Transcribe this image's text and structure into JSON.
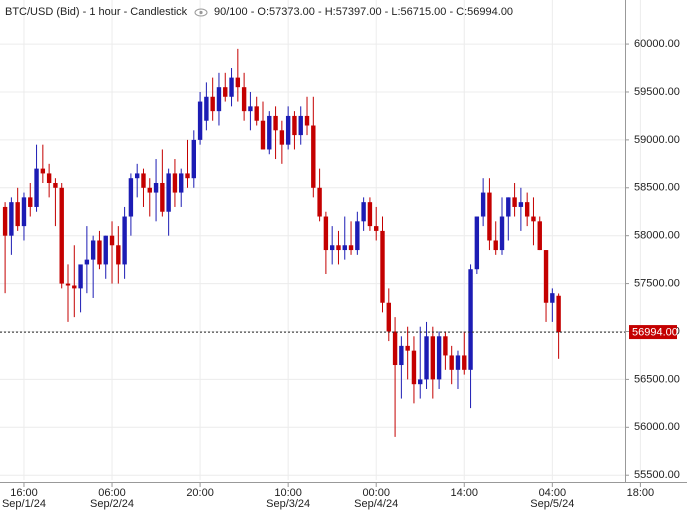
{
  "chart_data": {
    "type": "candlestick",
    "title": "BTC/USD (Bid) - 1 hour - Candlestick",
    "info": "90/100 - O:57373.00 - H:57397.00 - L:56715.00 - C:56994.00",
    "up_color": "#1c1cb4",
    "down_color": "#c40000",
    "ylim": [
      55450,
      60460
    ],
    "yticks": [
      {
        "value": 55500,
        "label": "55500.00"
      },
      {
        "value": 56000,
        "label": "56000.00"
      },
      {
        "value": 56500,
        "label": "56500.00"
      },
      {
        "value": 57000,
        "label": "57000.00"
      },
      {
        "value": 57500,
        "label": "57500.00"
      },
      {
        "value": 58000,
        "label": "58000.00"
      },
      {
        "value": 58500,
        "label": "58500.00"
      },
      {
        "value": 59000,
        "label": "59000.00"
      },
      {
        "value": 59500,
        "label": "59500.00"
      },
      {
        "value": 60000,
        "label": "60000.00"
      }
    ],
    "xticks": [
      {
        "value": "Sep/1/24 16:00",
        "label": "16:00"
      },
      {
        "value": "Sep/2/24 06:00",
        "label": "06:00"
      },
      {
        "value": "Sep/2/24 20:00",
        "label": "20:00"
      },
      {
        "value": "Sep/3/24 10:00",
        "label": "10:00"
      },
      {
        "value": "Sep/4/24 00:00",
        "label": "00:00"
      },
      {
        "value": "Sep/4/24 14:00",
        "label": "14:00"
      },
      {
        "value": "Sep/5/24 04:00",
        "label": "04:00"
      },
      {
        "value": "Sep/5/24 18:00",
        "label": "18:00"
      }
    ],
    "xdate_ticks": [
      {
        "value": "Sep/1/24 16:00",
        "label": "Sep/1/24"
      },
      {
        "value": "Sep/2/24 06:00",
        "label": "Sep/2/24"
      },
      {
        "value": "Sep/3/24 10:00",
        "label": "Sep/3/24"
      },
      {
        "value": "Sep/4/24 00:00",
        "label": "Sep/4/24"
      },
      {
        "value": "Sep/5/24 04:00",
        "label": "Sep/5/24"
      }
    ],
    "price_marker": {
      "value": 56994,
      "label": "56994.00"
    },
    "grid": true,
    "x": [
      "Sep/1/24 13:00",
      "Sep/1/24 14:00",
      "Sep/1/24 15:00",
      "Sep/1/24 16:00",
      "Sep/1/24 17:00",
      "Sep/1/24 18:00",
      "Sep/1/24 19:00",
      "Sep/1/24 20:00",
      "Sep/1/24 21:00",
      "Sep/1/24 22:00",
      "Sep/1/24 23:00",
      "Sep/2/24 00:00",
      "Sep/2/24 01:00",
      "Sep/2/24 02:00",
      "Sep/2/24 03:00",
      "Sep/2/24 04:00",
      "Sep/2/24 05:00",
      "Sep/2/24 06:00",
      "Sep/2/24 07:00",
      "Sep/2/24 08:00",
      "Sep/2/24 09:00",
      "Sep/2/24 10:00",
      "Sep/2/24 11:00",
      "Sep/2/24 12:00",
      "Sep/2/24 13:00",
      "Sep/2/24 14:00",
      "Sep/2/24 15:00",
      "Sep/2/24 16:00",
      "Sep/2/24 17:00",
      "Sep/2/24 18:00",
      "Sep/2/24 19:00",
      "Sep/2/24 20:00",
      "Sep/2/24 21:00",
      "Sep/2/24 22:00",
      "Sep/2/24 23:00",
      "Sep/3/24 00:00",
      "Sep/3/24 01:00",
      "Sep/3/24 02:00",
      "Sep/3/24 03:00",
      "Sep/3/24 04:00",
      "Sep/3/24 05:00",
      "Sep/3/24 06:00",
      "Sep/3/24 07:00",
      "Sep/3/24 08:00",
      "Sep/3/24 09:00",
      "Sep/3/24 10:00",
      "Sep/3/24 11:00",
      "Sep/3/24 12:00",
      "Sep/3/24 13:00",
      "Sep/3/24 14:00",
      "Sep/3/24 15:00",
      "Sep/3/24 16:00",
      "Sep/3/24 17:00",
      "Sep/3/24 18:00",
      "Sep/3/24 19:00",
      "Sep/3/24 20:00",
      "Sep/3/24 21:00",
      "Sep/3/24 22:00",
      "Sep/3/24 23:00",
      "Sep/4/24 00:00",
      "Sep/4/24 01:00",
      "Sep/4/24 02:00",
      "Sep/4/24 03:00",
      "Sep/4/24 04:00",
      "Sep/4/24 05:00",
      "Sep/4/24 06:00",
      "Sep/4/24 07:00",
      "Sep/4/24 08:00",
      "Sep/4/24 09:00",
      "Sep/4/24 10:00",
      "Sep/4/24 11:00",
      "Sep/4/24 12:00",
      "Sep/4/24 13:00",
      "Sep/4/24 14:00",
      "Sep/4/24 15:00",
      "Sep/4/24 16:00",
      "Sep/4/24 17:00",
      "Sep/4/24 18:00",
      "Sep/4/24 19:00",
      "Sep/4/24 20:00",
      "Sep/4/24 21:00",
      "Sep/4/24 22:00",
      "Sep/4/24 23:00",
      "Sep/5/24 00:00",
      "Sep/5/24 01:00",
      "Sep/5/24 02:00",
      "Sep/5/24 03:00",
      "Sep/5/24 04:00",
      "Sep/5/24 05:00"
    ],
    "ohlc": [
      [
        58300,
        58350,
        57400,
        58000
      ],
      [
        58000,
        58400,
        57800,
        58350
      ],
      [
        58350,
        58500,
        58050,
        58100
      ],
      [
        58100,
        58450,
        57950,
        58400
      ],
      [
        58400,
        58550,
        58200,
        58300
      ],
      [
        58300,
        58950,
        58250,
        58700
      ],
      [
        58700,
        58950,
        58550,
        58650
      ],
      [
        58650,
        58750,
        58400,
        58550
      ],
      [
        58550,
        58600,
        58100,
        58500
      ],
      [
        58500,
        58550,
        57450,
        57500
      ],
      [
        57500,
        57700,
        57100,
        57480
      ],
      [
        57480,
        57900,
        57150,
        57450
      ],
      [
        57450,
        57650,
        57200,
        57700
      ],
      [
        57700,
        58100,
        57400,
        57750
      ],
      [
        57750,
        58000,
        57350,
        57950
      ],
      [
        57950,
        58050,
        57650,
        57700
      ],
      [
        57700,
        58000,
        57550,
        58000
      ],
      [
        58000,
        58150,
        57500,
        57900
      ],
      [
        57900,
        58100,
        57500,
        57700
      ],
      [
        57700,
        58300,
        57550,
        58200
      ],
      [
        58200,
        58650,
        58000,
        58600
      ],
      [
        58600,
        58750,
        58400,
        58650
      ],
      [
        58650,
        58700,
        58300,
        58500
      ],
      [
        58500,
        58600,
        58200,
        58450
      ],
      [
        58450,
        58800,
        58150,
        58550
      ],
      [
        58550,
        58900,
        58200,
        58250
      ],
      [
        58250,
        58700,
        58000,
        58650
      ],
      [
        58650,
        58800,
        58300,
        58450
      ],
      [
        58450,
        58700,
        58300,
        58650
      ],
      [
        58650,
        59000,
        58500,
        58600
      ],
      [
        58600,
        59100,
        58500,
        59000
      ],
      [
        59000,
        59500,
        58950,
        59400
      ],
      [
        59200,
        59600,
        59100,
        59450
      ],
      [
        59450,
        59650,
        59200,
        59300
      ],
      [
        59300,
        59700,
        59150,
        59550
      ],
      [
        59550,
        59700,
        59400,
        59450
      ],
      [
        59450,
        59750,
        59350,
        59650
      ],
      [
        59650,
        59950,
        59400,
        59550
      ],
      [
        59550,
        59700,
        59200,
        59300
      ],
      [
        59300,
        59500,
        59100,
        59350
      ],
      [
        59350,
        59450,
        59150,
        59200
      ],
      [
        59200,
        59400,
        58900,
        58900
      ],
      [
        58900,
        59300,
        58850,
        59250
      ],
      [
        59250,
        59350,
        58800,
        59100
      ],
      [
        59100,
        59200,
        58750,
        58950
      ],
      [
        58950,
        59350,
        58900,
        59250
      ],
      [
        59250,
        59300,
        58900,
        59050
      ],
      [
        59050,
        59350,
        58950,
        59250
      ],
      [
        59250,
        59450,
        59050,
        59150
      ],
      [
        59150,
        59450,
        58400,
        58500
      ],
      [
        58500,
        58700,
        58150,
        58200
      ],
      [
        58200,
        58250,
        57600,
        57850
      ],
      [
        57850,
        58100,
        57700,
        57900
      ],
      [
        57900,
        58050,
        57700,
        57850
      ],
      [
        57850,
        58200,
        57750,
        57900
      ],
      [
        57900,
        58150,
        57800,
        57850
      ],
      [
        57850,
        58250,
        57800,
        58150
      ],
      [
        58150,
        58400,
        58050,
        58350
      ],
      [
        58350,
        58400,
        58050,
        58100
      ],
      [
        58100,
        58300,
        57950,
        58050
      ],
      [
        58050,
        58200,
        57200,
        57300
      ],
      [
        57300,
        57450,
        56900,
        57000
      ],
      [
        57000,
        57150,
        55900,
        56650
      ],
      [
        56650,
        56950,
        56300,
        56850
      ],
      [
        56850,
        57050,
        56500,
        56800
      ],
      [
        56800,
        56950,
        56250,
        56450
      ],
      [
        56450,
        57050,
        56300,
        56500
      ],
      [
        56500,
        57100,
        56400,
        56950
      ],
      [
        56950,
        57050,
        56300,
        56500
      ],
      [
        56500,
        57000,
        56400,
        56950
      ],
      [
        56950,
        57000,
        56600,
        56750
      ],
      [
        56750,
        56850,
        56450,
        56600
      ],
      [
        56600,
        56800,
        56400,
        56750
      ],
      [
        56750,
        57000,
        56550,
        56600
      ],
      [
        56600,
        57700,
        56200,
        57650
      ],
      [
        57650,
        58200,
        57600,
        58200
      ],
      [
        58200,
        58600,
        58100,
        58450
      ],
      [
        58450,
        58600,
        57850,
        57950
      ],
      [
        57950,
        58150,
        57800,
        57850
      ],
      [
        57850,
        58400,
        57800,
        58200
      ],
      [
        58200,
        58400,
        57950,
        58400
      ],
      [
        58400,
        58550,
        58200,
        58300
      ],
      [
        58300,
        58500,
        58050,
        58350
      ],
      [
        58350,
        58450,
        58100,
        58200
      ],
      [
        58200,
        58400,
        57900,
        58150
      ],
      [
        58150,
        58200,
        57850,
        57850
      ],
      [
        57850,
        57850,
        57100,
        57300
      ],
      [
        57300,
        57450,
        57100,
        57400
      ],
      [
        57373,
        57397,
        56715,
        56994
      ]
    ]
  }
}
